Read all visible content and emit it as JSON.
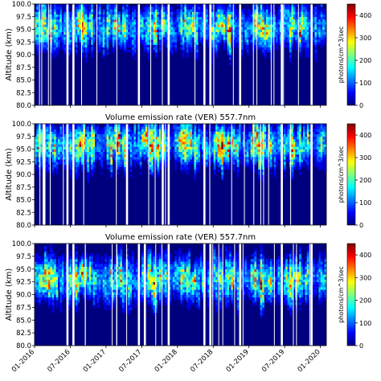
{
  "chart_data": [
    {
      "type": "heatmap",
      "title": "",
      "xlabel": "",
      "ylabel": "Altitude (km)",
      "ylim": [
        80.0,
        100.0
      ],
      "yticks": [
        "80.0",
        "82.5",
        "85.0",
        "87.5",
        "90.0",
        "92.5",
        "95.0",
        "97.5",
        "100.0"
      ],
      "xlim": [
        "2016-01",
        "2020-02"
      ],
      "xticks": [
        "01-2016",
        "07-2016",
        "01-2017",
        "07-2017",
        "01-2018",
        "07-2018",
        "01-2019",
        "07-2019",
        "01-2020"
      ],
      "x_tick_labels_shown": false,
      "colorbar": {
        "label": "photons/cm^3/sec",
        "ticks": [
          "0",
          "100",
          "200",
          "300",
          "400"
        ],
        "range": [
          0,
          450
        ],
        "colormap": "jet"
      },
      "peak_altitude_km": 95.5,
      "peak_value_approx": 300,
      "data_gaps": [
        "2016-06",
        "2016-07",
        "2017-06",
        "2017-11",
        "2018-05",
        "2018-06",
        "2018-11",
        "2019-06",
        "2019-11"
      ]
    },
    {
      "type": "heatmap",
      "title": "Volume emission rate (VER) 557.7nm",
      "xlabel": "",
      "ylabel": "Altitude (km)",
      "ylim": [
        80.0,
        100.0
      ],
      "yticks": [
        "80.0",
        "82.5",
        "85.0",
        "87.5",
        "90.0",
        "92.5",
        "95.0",
        "97.5",
        "100.0"
      ],
      "xlim": [
        "2016-01",
        "2020-02"
      ],
      "xticks": [
        "01-2016",
        "07-2016",
        "01-2017",
        "07-2017",
        "01-2018",
        "07-2018",
        "01-2019",
        "07-2019",
        "01-2020"
      ],
      "x_tick_labels_shown": false,
      "colorbar": {
        "label": "photons/cm^3/sec",
        "ticks": [
          "0",
          "100",
          "200",
          "300",
          "400"
        ],
        "range": [
          0,
          450
        ],
        "colormap": "jet"
      },
      "peak_altitude_km": 96.0,
      "peak_value_approx": 330,
      "data_gaps": [
        "2016-02",
        "2016-06",
        "2016-07",
        "2017-04",
        "2017-10",
        "2017-11",
        "2018-05",
        "2019-06",
        "2019-11"
      ]
    },
    {
      "type": "heatmap",
      "title": "Volume emission rate (VER) 557.7nm",
      "xlabel": "",
      "ylabel": "Altitude (km)",
      "ylim": [
        80.0,
        100.0
      ],
      "yticks": [
        "80.0",
        "82.5",
        "85.0",
        "87.5",
        "90.0",
        "92.5",
        "95.0",
        "97.5",
        "100.0"
      ],
      "xlim": [
        "2016-01",
        "2020-02"
      ],
      "xticks": [
        "01-2016",
        "07-2016",
        "01-2017",
        "07-2017",
        "01-2018",
        "07-2018",
        "01-2019",
        "07-2019",
        "01-2020"
      ],
      "x_tick_labels_shown": true,
      "colorbar": {
        "label": "photons/cm^3/sec",
        "ticks": [
          "0",
          "100",
          "200",
          "300",
          "400"
        ],
        "range": [
          0,
          450
        ],
        "colormap": "jet"
      },
      "peak_altitude_km": 93.0,
      "peak_value_approx": 300,
      "data_gaps": [
        "2016-06",
        "2016-07",
        "2017-06",
        "2017-07",
        "2017-11",
        "2018-05",
        "2018-06",
        "2018-11",
        "2019-06",
        "2019-11"
      ]
    }
  ]
}
